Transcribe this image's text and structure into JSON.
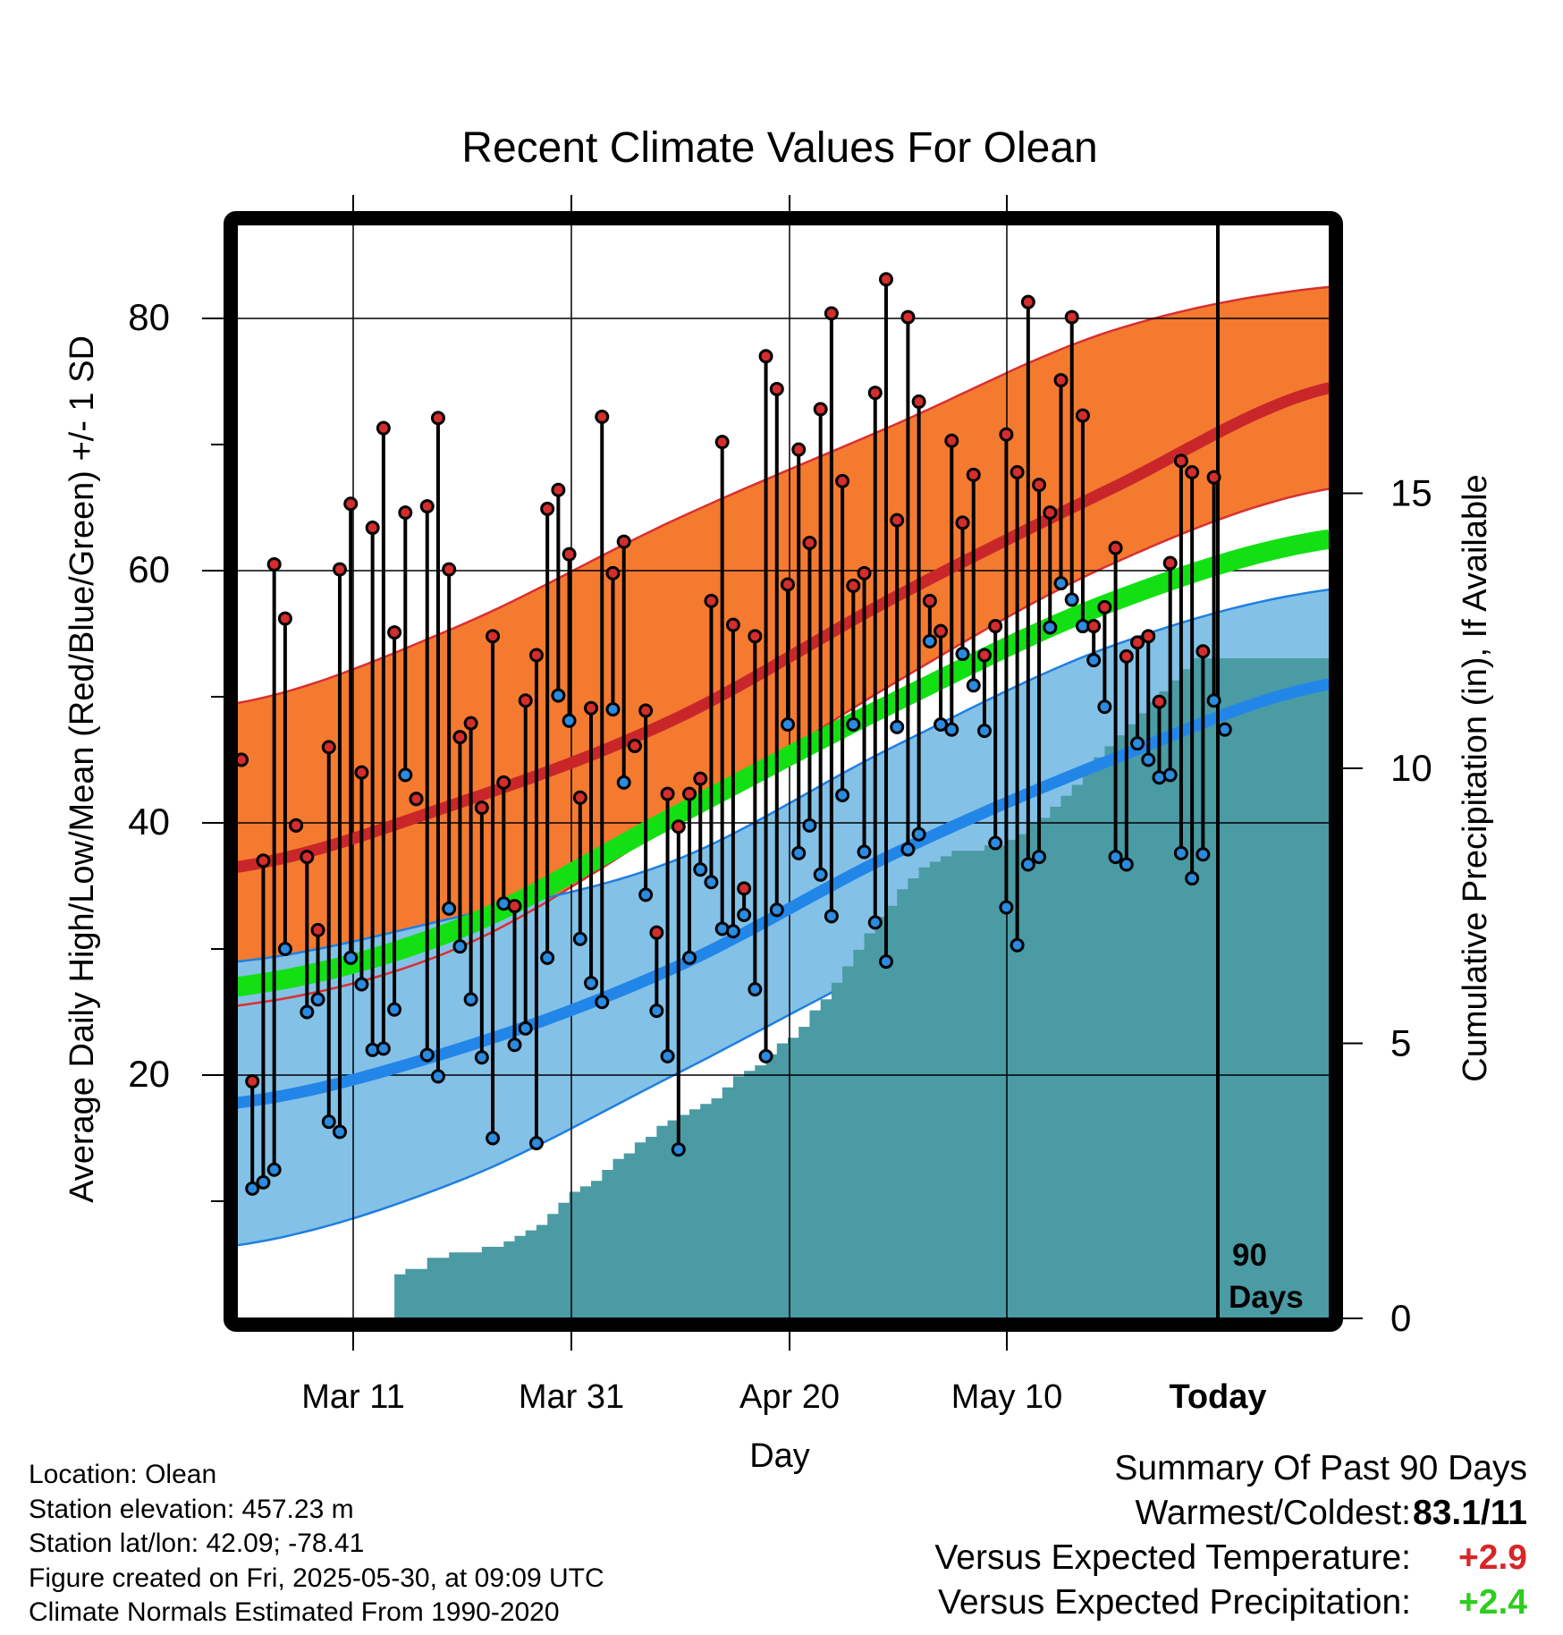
{
  "chart_data": {
    "type": "line",
    "title": "Recent Climate Values For Olean",
    "xlabel": "Day",
    "ylabel": "Average Daily High/Low/Mean (Red/Blue/Green) +/- 1 SD",
    "y2label": "Cumulative Precipitation (in), If Available",
    "xtick_labels": [
      "Mar 11",
      "Mar 31",
      "Apr 20",
      "May 10",
      "Today"
    ],
    "ylim": [
      0,
      88
    ],
    "y_ticks": [
      20,
      40,
      60,
      80
    ],
    "y2_ticks": [
      0,
      5,
      10,
      15
    ],
    "y2lim": [
      0,
      19.8
    ],
    "today_marker_label": "90 Days",
    "normals": {
      "normal_high": [
        [
          0,
          36.5
        ],
        [
          20,
          41.5
        ],
        [
          40,
          48.2
        ],
        [
          60,
          57.8
        ],
        [
          80,
          66.5
        ],
        [
          100,
          74.5
        ]
      ],
      "high_upper": [
        [
          0,
          49.5
        ],
        [
          20,
          55.5
        ],
        [
          40,
          64
        ],
        [
          60,
          71.5
        ],
        [
          80,
          79
        ],
        [
          100,
          82.5
        ]
      ],
      "high_lower": [
        [
          0,
          25.5
        ],
        [
          20,
          30
        ],
        [
          40,
          40
        ],
        [
          60,
          51
        ],
        [
          80,
          60.5
        ],
        [
          100,
          66.5
        ]
      ],
      "normal_mean": [
        [
          0,
          27
        ],
        [
          20,
          31.5
        ],
        [
          40,
          40.5
        ],
        [
          60,
          49.5
        ],
        [
          80,
          57.5
        ],
        [
          100,
          62.5
        ]
      ],
      "normal_low": [
        [
          0,
          17.8
        ],
        [
          20,
          22
        ],
        [
          40,
          28.5
        ],
        [
          60,
          37.5
        ],
        [
          80,
          45
        ],
        [
          100,
          51
        ]
      ],
      "low_upper": [
        [
          0,
          29
        ],
        [
          20,
          32.5
        ],
        [
          40,
          37
        ],
        [
          60,
          46
        ],
        [
          80,
          54
        ],
        [
          100,
          58.5
        ]
      ],
      "low_lower": [
        [
          0,
          6.5
        ],
        [
          20,
          11.5
        ],
        [
          40,
          20
        ],
        [
          60,
          29
        ],
        [
          80,
          37
        ],
        [
          100,
          44
        ]
      ]
    },
    "daily_highs": [
      45,
      19.5,
      37,
      60.5,
      56.2,
      39.8,
      37.3,
      31.5,
      46,
      60.1,
      65.3,
      44,
      63.4,
      71.3,
      55.1,
      64.6,
      41.9,
      65.1,
      72.1,
      60.1,
      46.8,
      47.9,
      41.2,
      54.8,
      43.2,
      33.4,
      49.7,
      53.3,
      64.9,
      66.4,
      61.3,
      42,
      49.1,
      72.2,
      59.8,
      62.3,
      46.1,
      48.9,
      31.3,
      42.3,
      39.7,
      42.3,
      43.5,
      57.6,
      70.2,
      55.7,
      34.8,
      54.8,
      77,
      74.4,
      58.9,
      69.6,
      62.2,
      72.8,
      80.4,
      67.1,
      58.8,
      59.8,
      74.1,
      83.1,
      64,
      80.1,
      73.4,
      57.6,
      55.2,
      70.3,
      63.8,
      67.6,
      53.3,
      55.6,
      70.8,
      67.8,
      81.3,
      66.8,
      64.6,
      75.1,
      80.1,
      72.3,
      55.6,
      57.1,
      61.8,
      53.2,
      54.3,
      54.8,
      49.6,
      60.6,
      68.7,
      67.8,
      53.6,
      67.4
    ],
    "daily_lows": [
      45,
      11,
      11.5,
      12.5,
      30,
      39.8,
      25,
      26,
      16.3,
      15.5,
      29.3,
      27.2,
      22,
      22.1,
      25.2,
      43.8,
      41.9,
      21.6,
      19.9,
      33.2,
      30.2,
      26,
      21.4,
      15,
      33.6,
      22.4,
      23.7,
      14.6,
      29.3,
      50.1,
      48.1,
      30.8,
      27.3,
      25.8,
      49,
      43.2,
      46.1,
      34.3,
      25.1,
      21.5,
      14.1,
      29.3,
      36.3,
      35.3,
      31.6,
      31.4,
      32.7,
      26.8,
      21.5,
      33.1,
      47.8,
      37.6,
      39.8,
      35.9,
      32.6,
      42.2,
      47.8,
      37.7,
      32.1,
      29,
      47.6,
      37.9,
      39.1,
      54.4,
      47.8,
      47.4,
      53.4,
      50.9,
      47.3,
      38.4,
      33.3,
      30.3,
      36.7,
      37.3,
      55.5,
      59,
      57.7,
      55.6,
      52.9,
      49.2,
      37.3,
      36.7,
      46.3,
      45,
      43.6,
      43.8,
      37.6,
      35.6,
      37.5,
      49.7,
      47.4
    ],
    "cumulative_precipitation": [
      0,
      0,
      0,
      0,
      0,
      0,
      0,
      0,
      0,
      0,
      0,
      0,
      0,
      0,
      0.8,
      0.9,
      0.9,
      1.1,
      1.1,
      1.2,
      1.2,
      1.2,
      1.3,
      1.3,
      1.4,
      1.5,
      1.6,
      1.7,
      1.9,
      2.1,
      2.3,
      2.4,
      2.5,
      2.7,
      2.9,
      3.0,
      3.2,
      3.3,
      3.5,
      3.6,
      3.7,
      3.8,
      3.9,
      4.0,
      4.2,
      4.4,
      4.5,
      4.6,
      4.8,
      5.0,
      5.1,
      5.3,
      5.6,
      5.8,
      6.1,
      6.4,
      6.7,
      7.0,
      7.3,
      7.5,
      7.8,
      8.0,
      8.2,
      8.3,
      8.4,
      8.5,
      8.5,
      8.5,
      8.6,
      8.6,
      8.7,
      8.8,
      9.0,
      9.1,
      9.3,
      9.5,
      9.7,
      10.0,
      10.2,
      10.4,
      10.6,
      10.8,
      11.0,
      11.2,
      11.4,
      11.6,
      11.8,
      12.0,
      12.0,
      12.0
    ],
    "days_shown": 90,
    "grid": true
  },
  "station": {
    "location": "Location: Olean",
    "elevation": "Station elevation: 457.23 m",
    "latlon": "Station lat/lon: 42.09; -78.41",
    "created": "Figure created on Fri, 2025-05-30, at 09:09 UTC",
    "normals": "Climate Normals Estimated From 1990-2020"
  },
  "summary": {
    "title": "Summary Of Past 90 Days",
    "warmest_coldest_label": "Warmest/Coldest:",
    "warmest_coldest_value": "83.1/11",
    "temp_label": "Versus Expected Temperature:",
    "temp_value": "+2.9",
    "precip_label": "Versus Expected Precipitation:",
    "precip_value": "+2.4",
    "colors": {
      "temp_value": "#d62728",
      "precip_value": "#2ecc1f"
    }
  },
  "colors": {
    "high_band": "#f47a30",
    "high_line": "#c9262a",
    "mean_line": "#13e013",
    "low_band": "#84c1e6",
    "low_line": "#2286e8",
    "band_edge_high": "#d83030",
    "band_edge_low": "#1e7fe0",
    "precip": "#4a9ba4",
    "high_dot": "#d42d2d",
    "low_dot": "#2a8be0"
  }
}
